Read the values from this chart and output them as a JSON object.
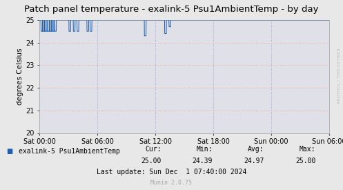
{
  "title": "Patch panel temperature - exalink-5 Psu1AmbientTemp - by day",
  "ylabel": "degrees Celsius",
  "background_color": "#e8e8e8",
  "plot_bg_color": "#e0e0e8",
  "line_color": "#1a5fb4",
  "grid_color_h": "#ff9999",
  "grid_color_v": "#9999cc",
  "ylim": [
    20,
    25
  ],
  "yticks": [
    20,
    21,
    22,
    23,
    24,
    25
  ],
  "xtick_labels": [
    "Sat 00:00",
    "Sat 06:00",
    "Sat 12:00",
    "Sat 18:00",
    "Sun 00:00",
    "Sun 06:00"
  ],
  "legend_label": "exalink-5 Psu1AmbientTemp",
  "legend_color": "#1a5fb4",
  "footer_cur_label": "Cur:",
  "footer_cur_val": "25.00",
  "footer_min_label": "Min:",
  "footer_min_val": "24.39",
  "footer_avg_label": "Avg:",
  "footer_avg_val": "24.97",
  "footer_max_label": "Max:",
  "footer_max_val": "25.00",
  "footer_lastupdate": "Last update: Sun Dec  1 07:40:00 2024",
  "footer_munin": "Munin 2.0.75",
  "watermark": "RRDTOOL / TOBI OETIKER",
  "title_fontsize": 9.5,
  "axis_fontsize": 7.5,
  "tick_fontsize": 7,
  "footer_fontsize": 7,
  "munin_fontsize": 6,
  "watermark_fontsize": 4.5
}
